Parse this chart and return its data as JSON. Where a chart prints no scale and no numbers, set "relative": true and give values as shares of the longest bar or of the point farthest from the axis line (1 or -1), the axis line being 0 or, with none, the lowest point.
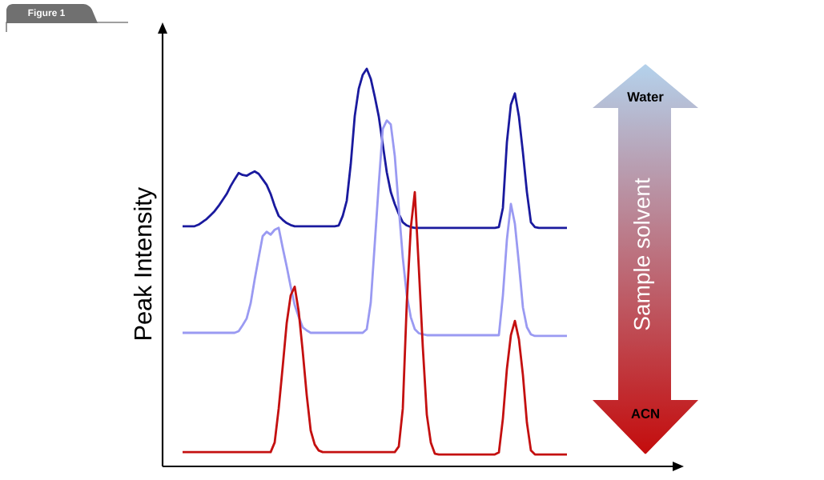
{
  "chart_data": {
    "type": "line",
    "relative": true,
    "ylabel": "Peak Intensity",
    "annotations": [
      "Figure 1",
      "Water",
      "Sample solvent",
      "ACN"
    ],
    "categories": [
      null,
      null,
      null,
      null,
      null,
      null,
      null,
      null,
      null,
      null,
      null,
      null,
      null,
      null,
      null,
      null,
      null,
      null,
      null,
      null,
      null,
      null,
      null,
      null,
      null,
      null,
      null,
      null,
      null,
      null,
      null,
      null,
      null,
      null,
      null,
      null,
      null,
      null,
      null,
      null,
      null,
      null,
      null,
      null,
      null,
      null,
      null,
      null,
      null,
      null,
      null,
      null,
      null,
      null,
      null,
      null,
      null,
      null,
      null,
      null,
      null,
      null,
      null,
      null,
      null,
      null,
      null,
      null,
      null,
      null,
      null,
      null,
      null,
      null,
      null,
      null,
      null,
      null,
      null,
      null,
      null,
      null,
      null,
      null,
      null,
      null,
      null,
      null,
      null,
      null,
      null,
      null,
      null,
      null,
      null,
      null,
      null
    ],
    "series": [
      {
        "color": "#1a1a9e",
        "values": [
          0.604,
          0.604,
          0.604,
          0.604,
          0.608,
          0.615,
          0.622,
          0.632,
          0.642,
          0.655,
          0.67,
          0.685,
          0.705,
          0.722,
          0.738,
          0.733,
          0.731,
          0.737,
          0.742,
          0.736,
          0.722,
          0.708,
          0.685,
          0.655,
          0.63,
          0.62,
          0.612,
          0.607,
          0.604,
          0.604,
          0.604,
          0.604,
          0.604,
          0.604,
          0.604,
          0.604,
          0.604,
          0.604,
          0.604,
          0.606,
          0.63,
          0.668,
          0.76,
          0.881,
          0.95,
          0.985,
          1,
          0.975,
          0.93,
          0.88,
          0.81,
          0.74,
          0.69,
          0.66,
          0.635,
          0.614,
          0.606,
          0.602,
          0.6,
          0.6,
          0.6,
          0.6,
          0.6,
          0.6,
          0.6,
          0.6,
          0.6,
          0.6,
          0.6,
          0.6,
          0.6,
          0.6,
          0.6,
          0.6,
          0.6,
          0.6,
          0.6,
          0.6,
          0.6,
          0.602,
          0.65,
          0.815,
          0.91,
          0.938,
          0.88,
          0.79,
          0.69,
          0.614,
          0.602,
          0.6,
          0.6,
          0.6,
          0.6,
          0.6,
          0.6,
          0.6,
          0.6
        ]
      },
      {
        "color": "#9a9af2",
        "values": [
          0.336,
          0.336,
          0.336,
          0.336,
          0.336,
          0.336,
          0.336,
          0.336,
          0.336,
          0.336,
          0.336,
          0.336,
          0.336,
          0.336,
          0.34,
          0.355,
          0.372,
          0.41,
          0.47,
          0.525,
          0.579,
          0.59,
          0.583,
          0.595,
          0.6,
          0.55,
          0.503,
          0.452,
          0.406,
          0.376,
          0.35,
          0.342,
          0.336,
          0.336,
          0.336,
          0.336,
          0.336,
          0.336,
          0.336,
          0.336,
          0.336,
          0.336,
          0.336,
          0.336,
          0.336,
          0.336,
          0.345,
          0.412,
          0.56,
          0.71,
          0.849,
          0.87,
          0.86,
          0.781,
          0.65,
          0.525,
          0.43,
          0.375,
          0.345,
          0.335,
          0.332,
          0.33,
          0.33,
          0.33,
          0.33,
          0.33,
          0.33,
          0.33,
          0.33,
          0.33,
          0.33,
          0.33,
          0.33,
          0.33,
          0.33,
          0.33,
          0.33,
          0.33,
          0.33,
          0.33,
          0.43,
          0.57,
          0.66,
          0.61,
          0.51,
          0.4,
          0.35,
          0.332,
          0.328,
          0.328,
          0.328,
          0.328,
          0.328,
          0.328,
          0.328,
          0.328,
          0.328
        ]
      },
      {
        "color": "#c41010",
        "values": [
          0.036,
          0.036,
          0.036,
          0.036,
          0.036,
          0.036,
          0.036,
          0.036,
          0.036,
          0.036,
          0.036,
          0.036,
          0.036,
          0.036,
          0.036,
          0.036,
          0.036,
          0.036,
          0.036,
          0.036,
          0.036,
          0.036,
          0.036,
          0.06,
          0.145,
          0.25,
          0.36,
          0.43,
          0.452,
          0.39,
          0.29,
          0.18,
          0.09,
          0.055,
          0.04,
          0.036,
          0.036,
          0.036,
          0.036,
          0.036,
          0.036,
          0.036,
          0.036,
          0.036,
          0.036,
          0.036,
          0.036,
          0.036,
          0.036,
          0.036,
          0.036,
          0.036,
          0.036,
          0.036,
          0.05,
          0.145,
          0.412,
          0.6,
          0.69,
          0.5,
          0.3,
          0.13,
          0.06,
          0.032,
          0.03,
          0.03,
          0.03,
          0.03,
          0.03,
          0.03,
          0.03,
          0.03,
          0.03,
          0.03,
          0.03,
          0.03,
          0.03,
          0.03,
          0.03,
          0.035,
          0.12,
          0.245,
          0.33,
          0.366,
          0.32,
          0.23,
          0.11,
          0.04,
          0.03,
          0.03,
          0.03,
          0.03,
          0.03,
          0.03,
          0.03,
          0.03,
          0.03
        ]
      }
    ]
  }
}
